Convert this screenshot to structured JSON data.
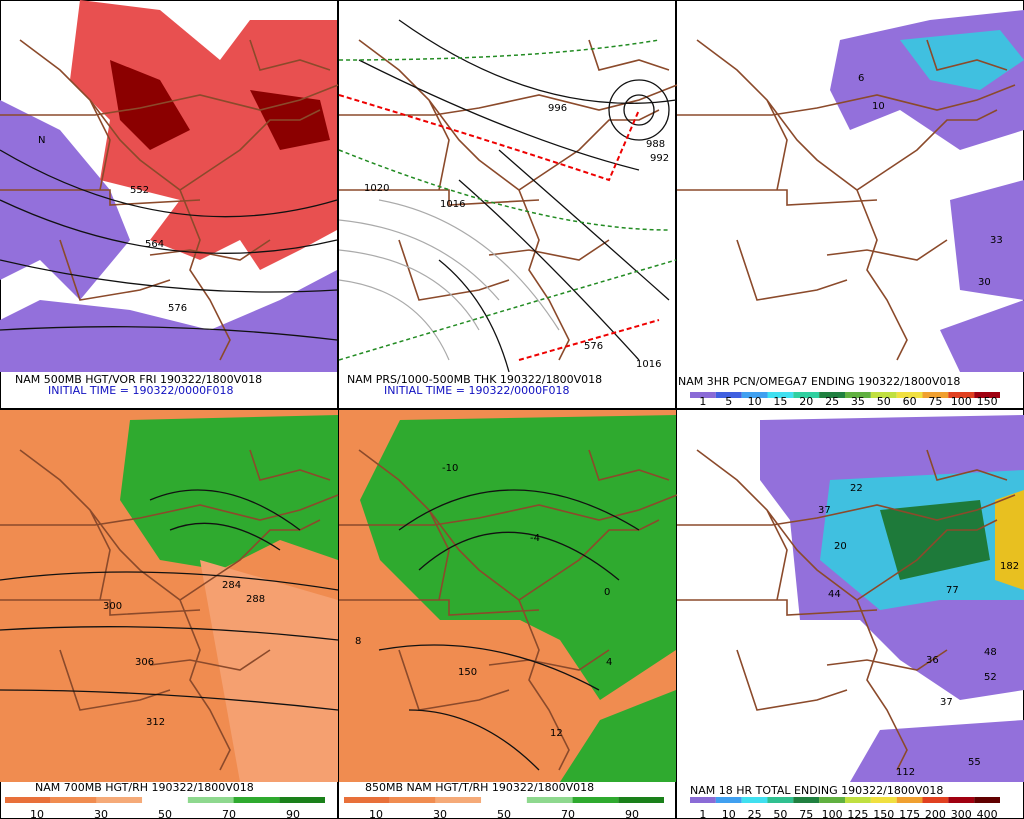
{
  "panels": [
    {
      "title": "NAM 500MB HGT/VOR FRI 190322/1800V018",
      "subtitle": "INITIAL TIME = 190322/0000F018",
      "labels": [
        "552",
        "564",
        "576",
        "N"
      ]
    },
    {
      "title": "NAM PRS/1000-500MB THK 190322/1800V018",
      "subtitle": "INITIAL TIME = 190322/0000F018",
      "labels": [
        "1020",
        "1016",
        "996",
        "992",
        "988",
        "1016",
        "576"
      ]
    },
    {
      "title": "NAM 3HR PCN/OMEGA7 ENDING 190322/1800V018",
      "labels": [
        "6",
        "10",
        "33",
        "30"
      ],
      "legend": {
        "labels": [
          "1",
          "5",
          "10",
          "15",
          "20",
          "25",
          "35",
          "50",
          "60",
          "75",
          "100",
          "150"
        ],
        "colors": [
          "#8a6bd6",
          "#4060e0",
          "#40a0f0",
          "#40e0f0",
          "#30d0a0",
          "#208040",
          "#60b040",
          "#c0e040",
          "#f0e040",
          "#f0a030",
          "#e04020",
          "#a00010"
        ]
      }
    },
    {
      "title": "NAM 700MB HGT/RH 190322/1800V018",
      "labels": [
        "300",
        "306",
        "312",
        "284",
        "288"
      ],
      "legend": {
        "labels": [
          "10",
          "30",
          "50",
          "70",
          "90"
        ],
        "colors": [
          "#e8703a",
          "#f08c50",
          "#f5aa78",
          "#fff",
          "#8ed88e",
          "#2faa2f",
          "#1a801a"
        ]
      }
    },
    {
      "title": "850MB NAM HGT/T/RH 190322/1800V018",
      "labels": [
        "150",
        "-10",
        "-4",
        "0",
        "4",
        "8",
        "12"
      ],
      "legend": {
        "labels": [
          "10",
          "30",
          "50",
          "70",
          "90"
        ],
        "colors": [
          "#e8703a",
          "#f08c50",
          "#f5aa78",
          "#fff",
          "#8ed88e",
          "#2faa2f",
          "#1a801a"
        ]
      }
    },
    {
      "title": "NAM 18 HR TOTAL ENDING 190322/1800V018",
      "labels": [
        "22",
        "37",
        "20",
        "44",
        "77",
        "36",
        "48",
        "52",
        "37",
        "55",
        "112",
        "182"
      ],
      "legend": {
        "labels": [
          "1",
          "10",
          "25",
          "50",
          "75",
          "100",
          "125",
          "150",
          "175",
          "200",
          "300",
          "400"
        ],
        "colors": [
          "#8a6bd6",
          "#40a0f0",
          "#40e0f0",
          "#30c090",
          "#208040",
          "#60b040",
          "#c0e040",
          "#f0e040",
          "#f0a030",
          "#e04020",
          "#a00010",
          "#600000"
        ]
      }
    }
  ]
}
